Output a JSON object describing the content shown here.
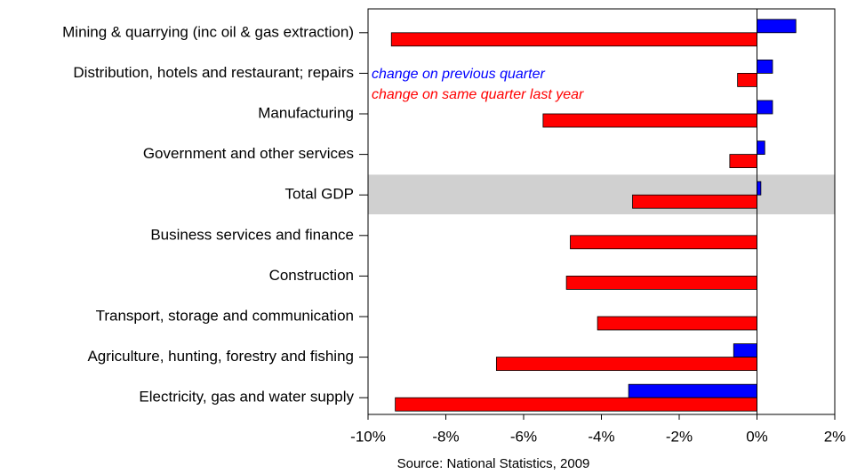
{
  "chart_data": {
    "type": "hbar",
    "categories": [
      "Mining & quarrying (inc oil & gas extraction)",
      "Distribution, hotels and restaurant; repairs",
      "Manufacturing",
      "Government and other services",
      "Total GDP",
      "Business services and finance",
      "Construction",
      "Transport, storage and communication",
      "Agriculture, hunting, forestry and fishing",
      "Electricity, gas and water supply"
    ],
    "series": [
      {
        "name": "change on previous quarter",
        "color": "#0000ff",
        "values": [
          1.0,
          0.4,
          0.4,
          0.2,
          0.1,
          0,
          0,
          0,
          -0.6,
          -3.3
        ]
      },
      {
        "name": "change on same quarter last year",
        "color": "#ff0000",
        "values": [
          -9.4,
          -0.5,
          -5.5,
          -0.7,
          -3.2,
          -4.8,
          -4.9,
          -4.1,
          -6.7,
          -9.3
        ]
      }
    ],
    "xlim": [
      -10,
      2
    ],
    "xticks": [
      {
        "value": -10,
        "label": "-10%"
      },
      {
        "value": -8,
        "label": "-8%"
      },
      {
        "value": -6,
        "label": "-6%"
      },
      {
        "value": -4,
        "label": "-4%"
      },
      {
        "value": -2,
        "label": "-2%"
      },
      {
        "value": 0,
        "label": "0%"
      },
      {
        "value": 2,
        "label": "2%"
      }
    ],
    "highlight_index": 4,
    "highlight_color": "#d0d0d0",
    "source": "Source: National Statistics, 2009"
  }
}
